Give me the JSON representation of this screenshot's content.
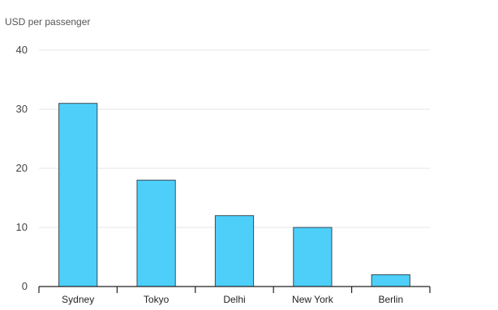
{
  "chart_data": {
    "type": "bar",
    "unit_label": "USD per passenger",
    "categories": [
      "Sydney",
      "Tokyo",
      "Delhi",
      "New York",
      "Berlin"
    ],
    "values": [
      31,
      18,
      12,
      10,
      2
    ],
    "ylim": [
      0,
      40
    ],
    "yticks": [
      0,
      10,
      20,
      30,
      40
    ],
    "grid": true,
    "bar_color": "#4dcffa",
    "bar_stroke": "#3a4a55",
    "gridline_color": "#e6e6e6",
    "axis_color": "#222222"
  }
}
